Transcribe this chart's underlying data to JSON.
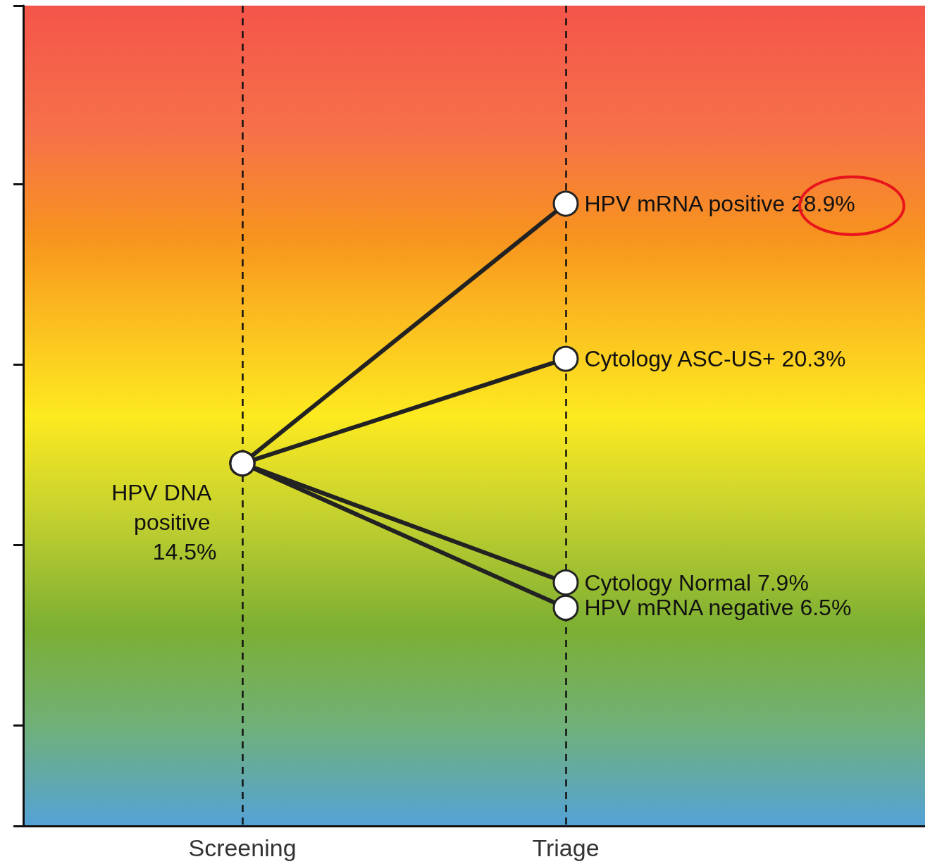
{
  "chart_data": {
    "type": "line",
    "categories": [
      "Screening",
      "Triage"
    ],
    "series": [
      {
        "color": "#222222",
        "values": [
          14.5,
          28.9
        ],
        "value_labels": [
          "HPV DNA positive 14.5%",
          "HPV mRNA positive 28.9%"
        ]
      },
      {
        "color": "#222222",
        "values": [
          14.5,
          20.3
        ],
        "value_labels": [
          null,
          "Cytology ASC-US+ 20.3%"
        ]
      },
      {
        "color": "#222222",
        "values": [
          14.5,
          7.9
        ],
        "value_labels": [
          null,
          "Cytology Normal 7.9%"
        ]
      },
      {
        "color": "#222222",
        "values": [
          14.5,
          6.5
        ],
        "value_labels": [
          null,
          "HPV mRNA negative 6.5%"
        ]
      }
    ],
    "tick_labels": "x",
    "grid": "x",
    "marker": "circle",
    "line_style": "solid"
  }
}
